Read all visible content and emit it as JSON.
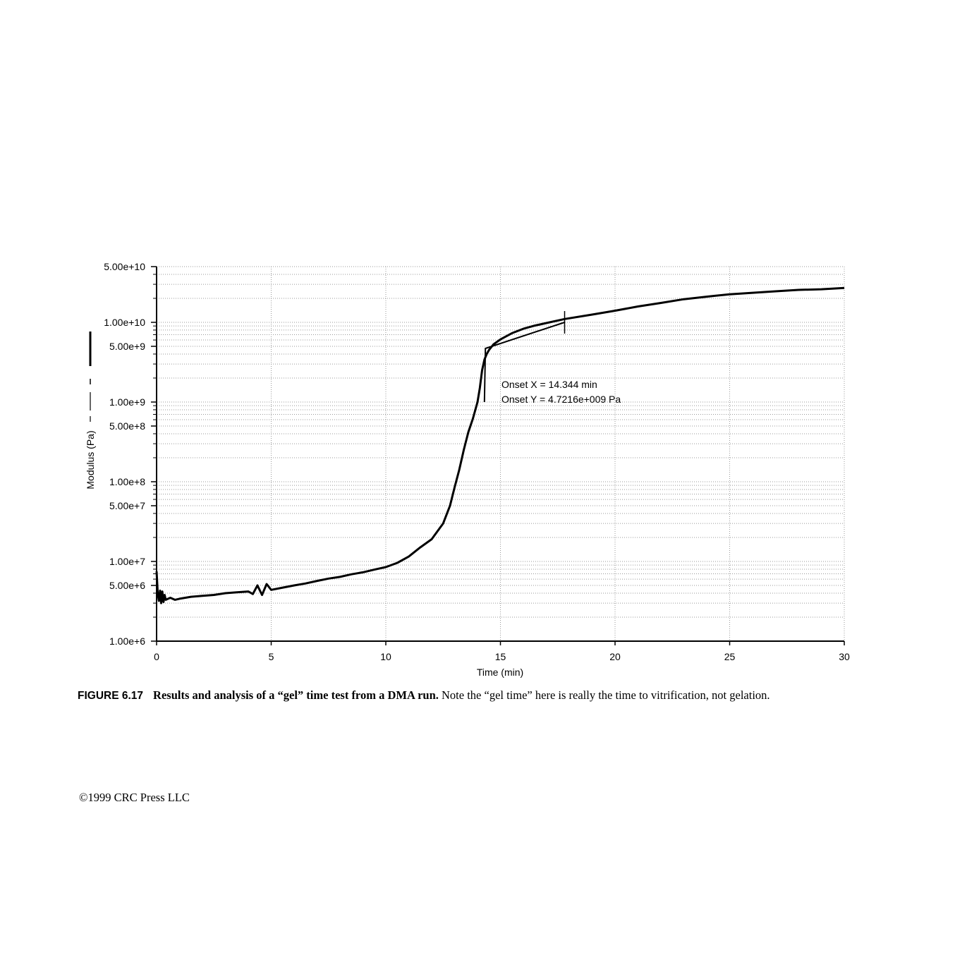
{
  "chart_data": {
    "type": "line",
    "xlabel": "Time (min)",
    "ylabel": "Modulus (Pa)",
    "xlim": [
      0,
      30
    ],
    "ylim": [
      1000000,
      50000000000
    ],
    "y_scale": "log",
    "grid": true,
    "x_ticks": [
      0,
      5,
      10,
      15,
      20,
      25,
      30
    ],
    "x_tick_labels": [
      "0",
      "5",
      "10",
      "15",
      "20",
      "25",
      "30"
    ],
    "y_ticks": [
      1000000,
      5000000,
      10000000,
      50000000,
      100000000,
      500000000,
      1000000000,
      5000000000,
      10000000000,
      50000000000
    ],
    "y_tick_labels": [
      "1.00e+6",
      "5.00e+6",
      "1.00e+7",
      "5.00e+7",
      "1.00e+8",
      "5.00e+8",
      "1.00e+9",
      "5.00e+9",
      "1.00e+10",
      "5.00e+10"
    ],
    "series": [
      {
        "x": [
          0,
          0.05,
          0.1,
          0.15,
          0.2,
          0.25,
          0.3,
          0.35,
          0.4,
          0.5,
          0.6,
          0.8,
          1.0,
          1.5,
          2.0,
          2.5,
          3.0,
          3.5,
          4.0,
          4.2,
          4.4,
          4.6,
          4.8,
          5.0,
          5.5,
          6.0,
          6.5,
          7.0,
          7.5,
          8.0,
          8.5,
          9.0,
          9.5,
          10.0,
          10.5,
          11.0,
          11.5,
          12.0,
          12.5,
          12.8,
          13.0,
          13.2,
          13.4,
          13.6,
          13.8,
          14.0,
          14.1,
          14.2,
          14.3,
          14.4,
          14.5,
          14.7,
          15.0,
          15.5,
          16.0,
          16.5,
          17.0,
          17.8,
          19.0,
          20.0,
          21.0,
          22.0,
          23.0,
          24.0,
          25.0,
          26.0,
          27.0,
          28.0,
          29.0,
          30.0
        ],
        "y": [
          7500000,
          4000000,
          3200000,
          4300000,
          3000000,
          4200000,
          3100000,
          3800000,
          3300000,
          3400000,
          3500000,
          3300000,
          3400000,
          3600000,
          3700000,
          3800000,
          4000000,
          4100000,
          4200000,
          3900000,
          5000000,
          3800000,
          5200000,
          4400000,
          4700000,
          5000000,
          5300000,
          5700000,
          6100000,
          6400000,
          6900000,
          7300000,
          7900000,
          8500000,
          9600000,
          11500000,
          15000000,
          19000000,
          30000000,
          50000000,
          85000000,
          140000000,
          250000000,
          420000000,
          620000000,
          1000000000,
          1500000000,
          2500000000,
          3400000000,
          4000000000,
          4500000000,
          5300000000,
          6100000000,
          7300000000,
          8300000000,
          9100000000,
          9800000000,
          11000000000,
          12500000000,
          14000000000,
          15800000000,
          17500000000,
          19500000000,
          21000000000,
          22500000000,
          23500000000,
          24500000000,
          25500000000,
          26000000000,
          27000000000
        ]
      }
    ],
    "onset_tangent": {
      "x": [
        14.3,
        14.344,
        17.8
      ],
      "y": [
        1000000000,
        4700000000,
        10000000000
      ]
    },
    "annotations": [
      "Onset X = 14.344 min",
      "Onset Y = 4.7216e+009 Pa"
    ]
  },
  "caption": {
    "label": "FIGURE 6.17",
    "bold_text": "Results and analysis of a “gel” time test from a DMA run.",
    "text": " Note the “gel time” here is really the time to vitrification, not gelation."
  },
  "copyright": "©1999 CRC Press LLC"
}
